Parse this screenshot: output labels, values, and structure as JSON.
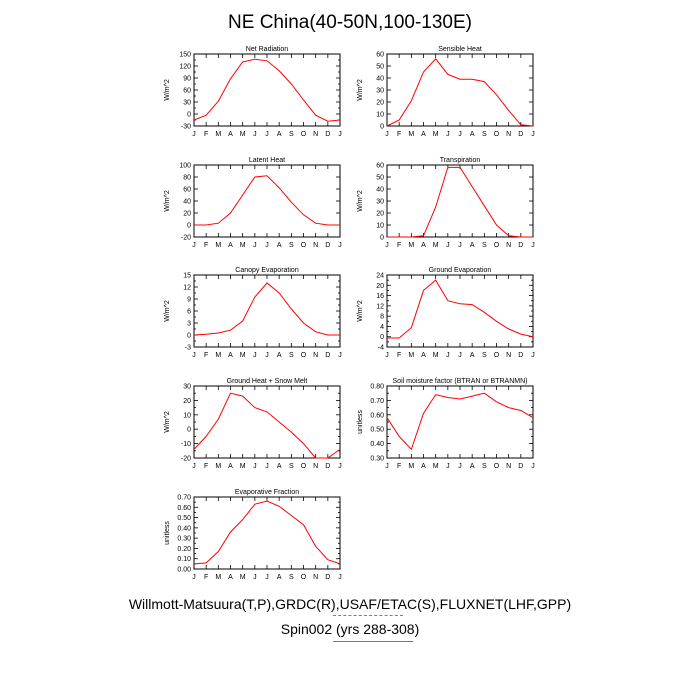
{
  "title": "NE China(40-50N,100-130E)",
  "footer": {
    "sources": "Willmott-Matsuura(T,P),GRDC(R),USAF/ETAC(S),FLUXNET(LHF,GPP)",
    "case": "Spin002 (yrs 288-308)"
  },
  "colors": {
    "line": "#ff0000",
    "axis": "#000000"
  },
  "months": [
    "J",
    "F",
    "M",
    "A",
    "M",
    "J",
    "J",
    "A",
    "S",
    "O",
    "N",
    "D",
    "J"
  ],
  "chart_data": [
    {
      "type": "line",
      "title": "Net Radiation",
      "ylabel": "W/m^2",
      "ylim": [
        -30,
        150
      ],
      "yticks": [
        -30,
        -15,
        0,
        15,
        30,
        45,
        60,
        75,
        90,
        105,
        120,
        135,
        150
      ],
      "ytick_labels": [
        "-30",
        "",
        "0",
        "",
        "30",
        "",
        "60",
        "",
        "90",
        "",
        "120",
        "",
        "150"
      ],
      "values": [
        -15,
        -3,
        32,
        88,
        130,
        137,
        133,
        108,
        75,
        35,
        -3,
        -18,
        -15
      ]
    },
    {
      "type": "line",
      "title": "Sensible Heat",
      "ylabel": "W/m^2",
      "ylim": [
        0,
        60
      ],
      "yticks": [
        0,
        10,
        20,
        30,
        40,
        50,
        60
      ],
      "ytick_labels": [
        "0",
        "10",
        "20",
        "30",
        "40",
        "50",
        "60"
      ],
      "values": [
        0,
        5,
        21,
        45,
        56,
        43,
        39,
        39,
        37,
        26,
        13,
        1,
        0
      ]
    },
    {
      "type": "line",
      "title": "Latent Heat",
      "ylabel": "W/m^2",
      "ylim": [
        -20,
        100
      ],
      "yticks": [
        -20,
        0,
        20,
        40,
        60,
        80,
        100
      ],
      "ytick_labels": [
        "-20",
        "0",
        "20",
        "40",
        "60",
        "80",
        "100"
      ],
      "values": [
        0,
        0,
        3,
        20,
        50,
        80,
        82,
        62,
        38,
        17,
        3,
        0,
        0
      ]
    },
    {
      "type": "line",
      "title": "Transpiration",
      "ylabel": "W/m^2",
      "ylim": [
        0,
        60
      ],
      "yticks": [
        0,
        10,
        20,
        30,
        40,
        50,
        60
      ],
      "ytick_labels": [
        "0",
        "10",
        "20",
        "30",
        "40",
        "50",
        "60"
      ],
      "values": [
        0,
        0,
        0,
        1,
        25,
        58,
        58,
        42,
        26,
        10,
        1,
        0,
        0
      ]
    },
    {
      "type": "line",
      "title": "Canopy Evaporation",
      "ylabel": "W/m^2",
      "ylim": [
        -3,
        15
      ],
      "yticks": [
        -3,
        -1.5,
        0,
        1.5,
        3,
        4.5,
        6,
        7.5,
        9,
        10.5,
        12,
        13.5,
        15
      ],
      "ytick_labels": [
        "-3",
        "",
        "0",
        "",
        "3",
        "",
        "6",
        "",
        "9",
        "",
        "12",
        "",
        "15"
      ],
      "values": [
        0,
        0.2,
        0.5,
        1.2,
        3.5,
        9.5,
        13,
        10.5,
        6.5,
        3,
        0.8,
        0,
        0
      ]
    },
    {
      "type": "line",
      "title": "Ground Evaporation",
      "ylabel": "W/m^2",
      "ylim": [
        -4,
        24
      ],
      "yticks": [
        -4,
        -2,
        0,
        2,
        4,
        6,
        8,
        10,
        12,
        14,
        16,
        18,
        20,
        22,
        24
      ],
      "ytick_labels": [
        "-4",
        "",
        "0",
        "",
        "4",
        "",
        "8",
        "",
        "12",
        "",
        "16",
        "",
        "20",
        "",
        "24"
      ],
      "values": [
        -0.5,
        -0.5,
        3.5,
        18,
        22,
        14,
        12.8,
        12.5,
        9.5,
        6,
        3,
        1,
        0
      ]
    },
    {
      "type": "line",
      "title": "Ground Heat + Snow Melt",
      "ylabel": "W/m^2",
      "ylim": [
        -20,
        30
      ],
      "yticks": [
        -20,
        -15,
        -10,
        -5,
        0,
        5,
        10,
        15,
        20,
        25,
        30
      ],
      "ytick_labels": [
        "-20",
        "",
        "-10",
        "",
        "0",
        "",
        "10",
        "",
        "20",
        "",
        "30"
      ],
      "values": [
        -14,
        -5,
        7,
        25,
        23,
        15,
        12,
        5,
        -2,
        -10,
        -20,
        -20,
        -14
      ]
    },
    {
      "type": "line",
      "title": "Soil moisture factor (BTRAN or BTRANMN)",
      "ylabel": "unitless",
      "ylim": [
        0.3,
        0.8
      ],
      "yticks": [
        0.3,
        0.35,
        0.4,
        0.45,
        0.5,
        0.55,
        0.6,
        0.65,
        0.7,
        0.75,
        0.8
      ],
      "ytick_labels": [
        "0.30",
        "",
        "0.40",
        "",
        "0.50",
        "",
        "0.60",
        "",
        "0.70",
        "",
        "0.80"
      ],
      "values": [
        0.58,
        0.45,
        0.36,
        0.61,
        0.74,
        0.72,
        0.71,
        0.73,
        0.75,
        0.69,
        0.65,
        0.63,
        0.58
      ]
    },
    {
      "type": "line",
      "title": "Evaporative Fraction",
      "ylabel": "unitless",
      "ylim": [
        0,
        0.7
      ],
      "yticks": [
        0,
        0.05,
        0.1,
        0.15,
        0.2,
        0.25,
        0.3,
        0.35,
        0.4,
        0.45,
        0.5,
        0.55,
        0.6,
        0.65,
        0.7
      ],
      "ytick_labels": [
        "0.00",
        "",
        "0.10",
        "",
        "0.20",
        "",
        "0.30",
        "",
        "0.40",
        "",
        "0.50",
        "",
        "0.60",
        "",
        "0.70"
      ],
      "values": [
        0.05,
        0.06,
        0.17,
        0.36,
        0.48,
        0.63,
        0.66,
        0.61,
        0.52,
        0.43,
        0.22,
        0.09,
        0.05
      ]
    }
  ]
}
